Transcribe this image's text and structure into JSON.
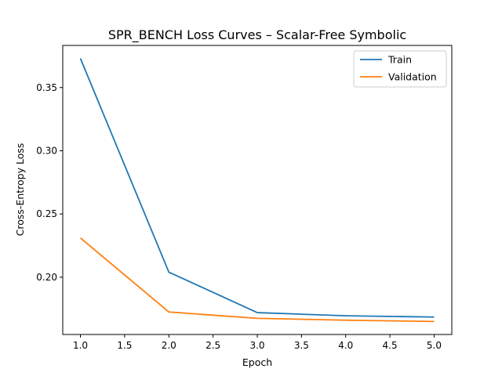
{
  "chart_data": {
    "type": "line",
    "title": "SPR_BENCH Loss Curves – Scalar-Free Symbolic",
    "xlabel": "Epoch",
    "ylabel": "Cross-Entropy Loss",
    "x": [
      1,
      2,
      3,
      4,
      5
    ],
    "series": [
      {
        "name": "Train",
        "color": "#1f77b4",
        "values": [
          0.373,
          0.204,
          0.172,
          0.1695,
          0.1685
        ]
      },
      {
        "name": "Validation",
        "color": "#ff7f0e",
        "values": [
          0.231,
          0.1725,
          0.1675,
          0.166,
          0.165
        ]
      }
    ],
    "xticks": [
      "1.0",
      "1.5",
      "2.0",
      "2.5",
      "3.0",
      "3.5",
      "4.0",
      "4.5",
      "5.0"
    ],
    "yticks": [
      "0.20",
      "0.25",
      "0.30",
      "0.35"
    ],
    "xlim": [
      0.8,
      5.2
    ],
    "ylim": [
      0.1547,
      0.3833
    ],
    "grid": false,
    "legend_position": "upper right"
  }
}
